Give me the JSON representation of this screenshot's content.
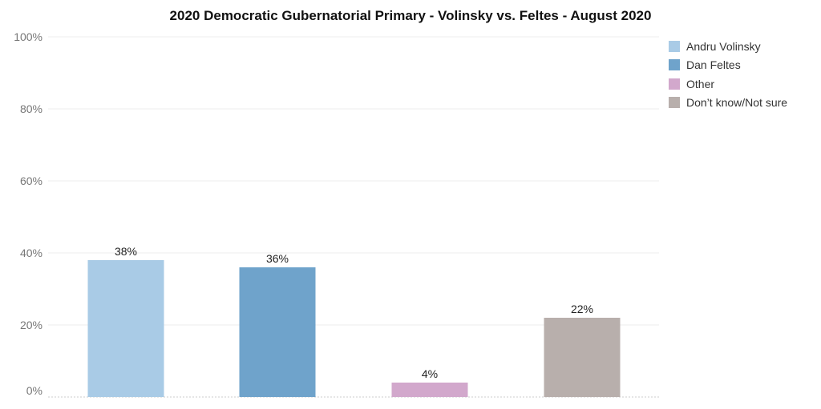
{
  "chart_data": {
    "type": "bar",
    "title": "2020 Democratic Gubernatorial Primary - Volinsky vs. Feltes - August 2020",
    "xlabel": "",
    "ylabel": "",
    "ylim": [
      0,
      100
    ],
    "yticks": [
      "0%",
      "20%",
      "40%",
      "60%",
      "80%",
      "100%"
    ],
    "categories": [
      "Andru Volinsky",
      "Dan Feltes",
      "Other",
      "Don’t know/Not sure"
    ],
    "values": [
      38,
      36,
      4,
      22
    ],
    "data_labels": [
      "38%",
      "36%",
      "4%",
      "22%"
    ],
    "colors": [
      "#a9cbe6",
      "#6fa3cb",
      "#d2a8cc",
      "#b8afac"
    ],
    "grid": true,
    "legend_position": "right"
  }
}
